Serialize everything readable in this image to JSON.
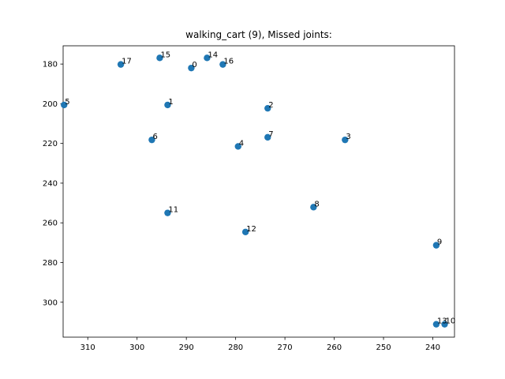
{
  "chart_data": {
    "type": "scatter",
    "title": "walking_cart (9), Missed joints:",
    "xlabel": "",
    "ylabel": "",
    "x_inverted": true,
    "y_inverted": true,
    "xlim": [
      315.0,
      235.6
    ],
    "ylim": [
      317.6,
      170.8
    ],
    "xticks": [
      310,
      300,
      290,
      280,
      270,
      260,
      250,
      240
    ],
    "yticks": [
      180,
      200,
      220,
      240,
      260,
      280,
      300
    ],
    "marker_color": "#1f77b4",
    "grid": false,
    "points": [
      {
        "label": "0",
        "x": 289.0,
        "y": 182.0
      },
      {
        "label": "1",
        "x": 293.8,
        "y": 200.6
      },
      {
        "label": "2",
        "x": 273.5,
        "y": 202.3
      },
      {
        "label": "3",
        "x": 257.8,
        "y": 218.2
      },
      {
        "label": "4",
        "x": 279.5,
        "y": 221.5
      },
      {
        "label": "5",
        "x": 314.8,
        "y": 200.6
      },
      {
        "label": "6",
        "x": 297.0,
        "y": 218.2
      },
      {
        "label": "7",
        "x": 273.5,
        "y": 216.9
      },
      {
        "label": "8",
        "x": 264.2,
        "y": 252.1
      },
      {
        "label": "9",
        "x": 239.3,
        "y": 271.3
      },
      {
        "label": "10",
        "x": 237.6,
        "y": 311.1
      },
      {
        "label": "11",
        "x": 293.8,
        "y": 255.0
      },
      {
        "label": "12",
        "x": 278.0,
        "y": 264.6
      },
      {
        "label": "13",
        "x": 239.3,
        "y": 311.1
      },
      {
        "label": "14",
        "x": 285.8,
        "y": 176.9
      },
      {
        "label": "15",
        "x": 295.4,
        "y": 176.9
      },
      {
        "label": "16",
        "x": 282.6,
        "y": 180.2
      },
      {
        "label": "17",
        "x": 303.3,
        "y": 180.2
      }
    ]
  }
}
